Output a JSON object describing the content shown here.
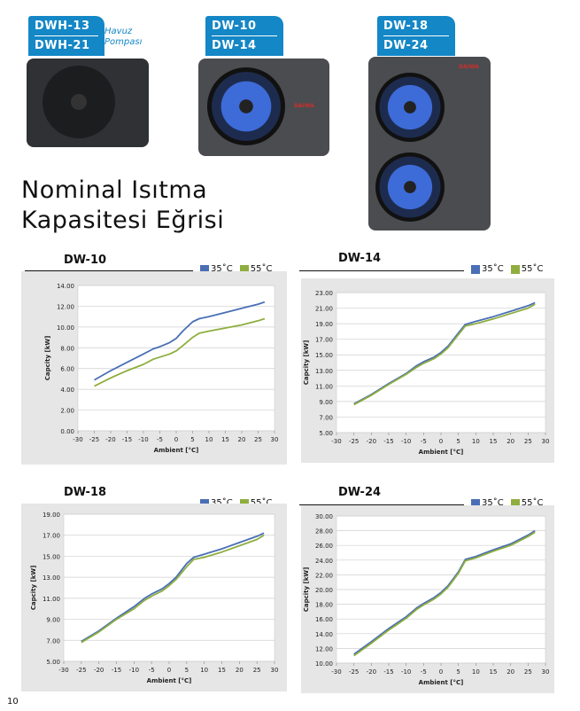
{
  "products": [
    {
      "model_top": "DWH-13",
      "model_bottom": "DWH-21",
      "note": "Havuz Pompası"
    },
    {
      "model_top": "DW-10",
      "model_bottom": "DW-14",
      "brand": "DAIWA"
    },
    {
      "model_top": "DW-18",
      "model_bottom": "DW-24",
      "brand": "DAIWA"
    }
  ],
  "heading_line1": "Nominal Isıtma",
  "heading_line2": "Kapasitesi Eğrisi",
  "page_number": "10",
  "colors": {
    "series_35": "#4a6fb5",
    "series_55": "#8fae3e",
    "tag": "#1487c6"
  },
  "chart_data": [
    {
      "type": "line",
      "title": "DW-10",
      "xlabel": "Ambient [°C]",
      "ylabel": "Capcity [kW]",
      "xlim": [
        -30,
        30
      ],
      "ylim": [
        0,
        14
      ],
      "x_ticks": [
        "-30",
        "-25",
        "-20",
        "-15",
        "-10",
        "-5",
        "0",
        "5",
        "10",
        "15",
        "20",
        "25",
        "30"
      ],
      "y_ticks": [
        "0.00",
        "2.00",
        "4.00",
        "6.00",
        "8.00",
        "10.00",
        "12.00",
        "14.00"
      ],
      "series": [
        {
          "name": "35˚C",
          "x": [
            -25,
            -20,
            -15,
            -10,
            -7,
            -5,
            -2,
            0,
            2,
            5,
            7,
            10,
            15,
            20,
            25,
            27
          ],
          "y": [
            4.9,
            5.8,
            6.6,
            7.4,
            7.9,
            8.1,
            8.5,
            8.9,
            9.6,
            10.5,
            10.8,
            11.0,
            11.4,
            11.8,
            12.2,
            12.4
          ]
        },
        {
          "name": "55˚C",
          "x": [
            -25,
            -20,
            -15,
            -10,
            -7,
            -5,
            -2,
            0,
            2,
            5,
            7,
            10,
            15,
            20,
            25,
            27
          ],
          "y": [
            4.3,
            5.1,
            5.8,
            6.4,
            6.9,
            7.1,
            7.4,
            7.7,
            8.2,
            9.0,
            9.4,
            9.6,
            9.9,
            10.2,
            10.6,
            10.8
          ]
        }
      ]
    },
    {
      "type": "line",
      "title": "DW-14",
      "xlabel": "Ambient [°C]",
      "ylabel": "Capcity [kW]",
      "xlim": [
        -30,
        30
      ],
      "ylim": [
        5,
        23
      ],
      "x_ticks": [
        "-30",
        "-25",
        "-20",
        "-15",
        "-10",
        "-5",
        "0",
        "5",
        "10",
        "15",
        "20",
        "25",
        "30"
      ],
      "y_ticks": [
        "5.00",
        "7.00",
        "9.00",
        "11.00",
        "13.00",
        "15.00",
        "17.00",
        "19.00",
        "21.00",
        "23.00"
      ],
      "series": [
        {
          "name": "35˚C",
          "x": [
            -25,
            -20,
            -15,
            -10,
            -7,
            -5,
            -2,
            0,
            2,
            5,
            7,
            10,
            15,
            20,
            25,
            27
          ],
          "y": [
            8.7,
            9.9,
            11.3,
            12.6,
            13.6,
            14.1,
            14.7,
            15.3,
            16.1,
            17.8,
            18.9,
            19.3,
            19.9,
            20.6,
            21.3,
            21.7
          ]
        },
        {
          "name": "55˚C",
          "x": [
            -25,
            -20,
            -15,
            -10,
            -7,
            -5,
            -2,
            0,
            2,
            5,
            7,
            10,
            15,
            20,
            25,
            27
          ],
          "y": [
            8.6,
            9.8,
            11.2,
            12.5,
            13.4,
            13.9,
            14.5,
            15.1,
            15.9,
            17.6,
            18.7,
            19.0,
            19.6,
            20.3,
            21.0,
            21.5
          ]
        }
      ]
    },
    {
      "type": "line",
      "title": "DW-18",
      "xlabel": "Ambient [°C]",
      "ylabel": "Capcity [kW]",
      "xlim": [
        -30,
        30
      ],
      "ylim": [
        5,
        19
      ],
      "x_ticks": [
        "-30",
        "-25",
        "-20",
        "-15",
        "-10",
        "-5",
        "0",
        "5",
        "10",
        "15",
        "20",
        "25",
        "30"
      ],
      "y_ticks": [
        "5.00",
        "7.00",
        "9.00",
        "11.00",
        "13.00",
        "15.00",
        "17.00",
        "19.00"
      ],
      "series": [
        {
          "name": "35˚C",
          "x": [
            -25,
            -20,
            -15,
            -10,
            -7,
            -5,
            -2,
            0,
            2,
            5,
            7,
            10,
            15,
            20,
            25,
            27
          ],
          "y": [
            6.9,
            7.9,
            9.1,
            10.2,
            11.0,
            11.4,
            11.9,
            12.4,
            13.0,
            14.3,
            14.9,
            15.2,
            15.7,
            16.3,
            16.9,
            17.2
          ]
        },
        {
          "name": "55˚C",
          "x": [
            -25,
            -20,
            -15,
            -10,
            -7,
            -5,
            -2,
            0,
            2,
            5,
            7,
            10,
            15,
            20,
            25,
            27
          ],
          "y": [
            6.8,
            7.8,
            9.0,
            10.0,
            10.8,
            11.2,
            11.7,
            12.2,
            12.8,
            14.0,
            14.7,
            14.9,
            15.4,
            16.0,
            16.6,
            17.0
          ]
        }
      ]
    },
    {
      "type": "line",
      "title": "DW-24",
      "xlabel": "Ambient [°C]",
      "ylabel": "Capcity [kW]",
      "xlim": [
        -30,
        30
      ],
      "ylim": [
        10,
        30
      ],
      "x_ticks": [
        "-30",
        "-25",
        "-20",
        "-15",
        "-10",
        "-5",
        "0",
        "5",
        "10",
        "15",
        "20",
        "25",
        "30"
      ],
      "y_ticks": [
        "10.00",
        "12.00",
        "14.00",
        "16.00",
        "18.00",
        "20.00",
        "22.00",
        "24.00",
        "26.00",
        "28.00",
        "30.00"
      ],
      "series": [
        {
          "name": "35˚C",
          "x": [
            -25,
            -20,
            -15,
            -10,
            -7,
            -5,
            -2,
            0,
            2,
            5,
            7,
            10,
            15,
            20,
            25,
            27
          ],
          "y": [
            11.2,
            12.9,
            14.7,
            16.3,
            17.5,
            18.1,
            18.9,
            19.6,
            20.5,
            22.4,
            24.1,
            24.5,
            25.4,
            26.2,
            27.4,
            28.0
          ]
        },
        {
          "name": "55˚C",
          "x": [
            -25,
            -20,
            -15,
            -10,
            -7,
            -5,
            -2,
            0,
            2,
            5,
            7,
            10,
            15,
            20,
            25,
            27
          ],
          "y": [
            11.0,
            12.7,
            14.5,
            16.1,
            17.3,
            17.9,
            18.7,
            19.4,
            20.3,
            22.2,
            23.9,
            24.3,
            25.2,
            26.0,
            27.2,
            27.8
          ]
        }
      ]
    }
  ]
}
